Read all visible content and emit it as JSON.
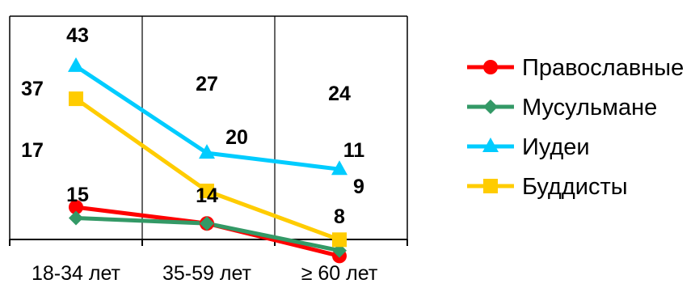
{
  "chart_data": {
    "type": "line",
    "title": "",
    "xlabel": "",
    "ylabel": "",
    "categories": [
      "18-34 лет",
      "35-59 лет",
      "≥ 60 лет"
    ],
    "ylim": [
      0,
      50
    ],
    "grid": {
      "vertical": true,
      "horizontal": false
    },
    "legend_position": "right",
    "series": [
      {
        "name": "Православные",
        "values": [
          17,
          14,
          8
        ],
        "color": "#ff0000",
        "marker": "circle"
      },
      {
        "name": "Мусульмане",
        "values": [
          15,
          14,
          9
        ],
        "color": "#339966",
        "marker": "diamond"
      },
      {
        "name": "Иудеи",
        "values": [
          43,
          27,
          24
        ],
        "color": "#00ccff",
        "marker": "triangle"
      },
      {
        "name": "Буддисты",
        "values": [
          37,
          20,
          11
        ],
        "color": "#ffcc00",
        "marker": "square"
      }
    ],
    "data_labels": [
      "43",
      "37",
      "17",
      "15",
      "27",
      "20",
      "14",
      "24",
      "11",
      "9",
      "8"
    ]
  }
}
